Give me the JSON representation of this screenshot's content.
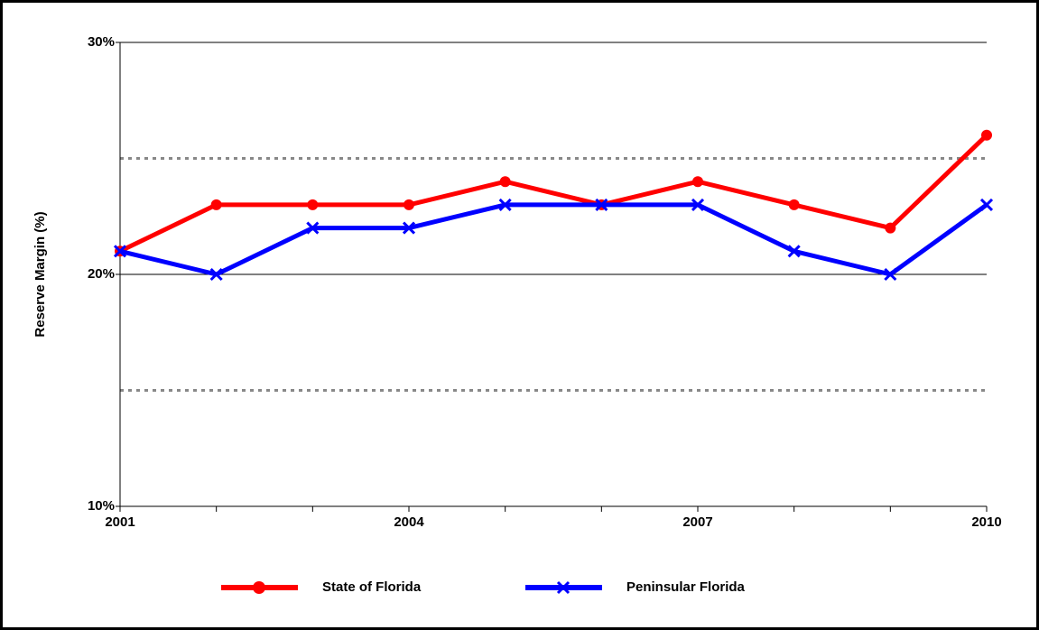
{
  "chart_data": {
    "type": "line",
    "y_axis_label": "Reserve Margin (%)",
    "x": [
      2001,
      2002,
      2003,
      2004,
      2005,
      2006,
      2007,
      2008,
      2009,
      2010
    ],
    "series": [
      {
        "name": "State of Florida",
        "color": "#ff0000",
        "marker": "circle",
        "values": [
          21,
          23,
          23,
          23,
          24,
          23,
          24,
          23,
          22,
          26
        ]
      },
      {
        "name": "Peninsular Florida",
        "color": "#0000ff",
        "marker": "x",
        "values": [
          21,
          20,
          22,
          22,
          23,
          23,
          23,
          21,
          20,
          23
        ]
      }
    ],
    "xlim": [
      2001,
      2010
    ],
    "xticks": [
      2001,
      2004,
      2007,
      2010
    ],
    "minor_xticks": [
      2002,
      2003,
      2005,
      2006,
      2008,
      2009
    ],
    "ylim": [
      10,
      30
    ],
    "yticks": [
      {
        "value": 10,
        "label": "10%"
      },
      {
        "value": 20,
        "label": "20%"
      },
      {
        "value": 30,
        "label": "30%"
      }
    ],
    "minor_yticks": [
      15,
      25
    ],
    "grid": true,
    "legend": "bottom"
  }
}
